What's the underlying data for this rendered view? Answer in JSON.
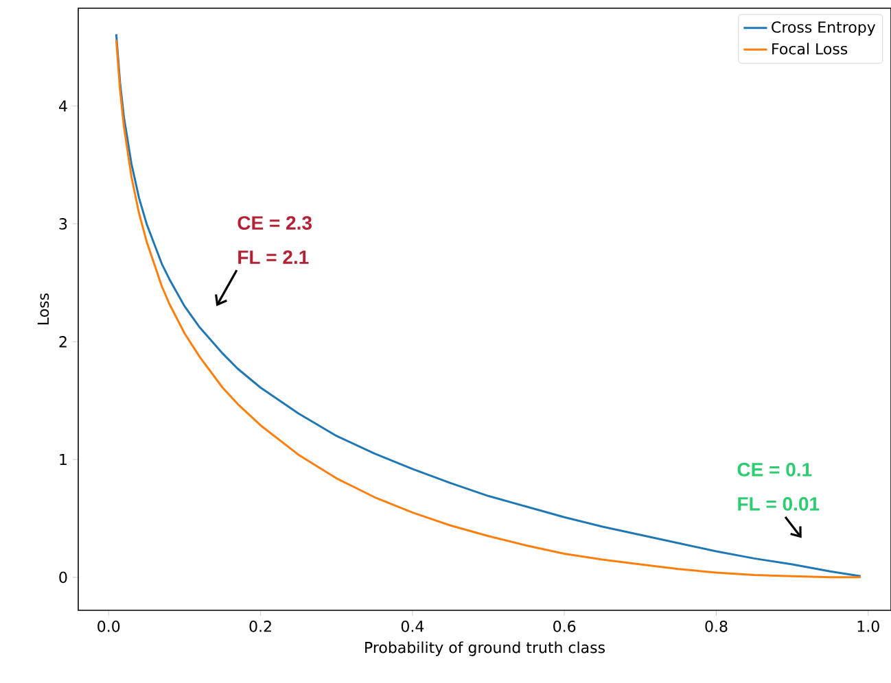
{
  "chart_data": {
    "type": "line",
    "xlabel": "Probability of ground truth class",
    "ylabel": "Loss",
    "x": [
      0.01,
      0.015,
      0.02,
      0.03,
      0.04,
      0.05,
      0.07,
      0.08,
      0.1,
      0.12,
      0.15,
      0.17,
      0.2,
      0.25,
      0.3,
      0.35,
      0.4,
      0.45,
      0.5,
      0.55,
      0.6,
      0.65,
      0.7,
      0.75,
      0.8,
      0.85,
      0.9,
      0.95,
      0.99
    ],
    "series": [
      {
        "name": "Cross Entropy",
        "color": "#1f77b4",
        "values": [
          4.61,
          4.2,
          3.91,
          3.51,
          3.22,
          3.0,
          2.66,
          2.53,
          2.3,
          2.12,
          1.9,
          1.77,
          1.61,
          1.39,
          1.2,
          1.05,
          0.92,
          0.8,
          0.69,
          0.6,
          0.51,
          0.43,
          0.36,
          0.29,
          0.22,
          0.16,
          0.11,
          0.05,
          0.01
        ]
      },
      {
        "name": "Focal Loss",
        "color": "#ff7f0e",
        "values": [
          4.56,
          4.14,
          3.83,
          3.4,
          3.09,
          2.85,
          2.47,
          2.32,
          2.07,
          1.87,
          1.61,
          1.47,
          1.29,
          1.04,
          0.84,
          0.68,
          0.55,
          0.44,
          0.35,
          0.27,
          0.2,
          0.15,
          0.11,
          0.07,
          0.04,
          0.02,
          0.01,
          0.0,
          0.0
        ]
      }
    ],
    "xlim": [
      -0.04,
      1.03
    ],
    "ylim": [
      -0.28,
      4.83
    ],
    "xticks": [
      {
        "value": 0,
        "label": "0.0"
      },
      0.2,
      0.4,
      0.6,
      0.8,
      {
        "value": 1,
        "label": "1.0"
      }
    ],
    "yticks": [
      0,
      1,
      2,
      3,
      4
    ],
    "legend": "top right",
    "grid": false,
    "annotations": [
      "CE = 2.3",
      "FL = 2.1",
      "CE = 0.1",
      "FL = 0.01"
    ]
  }
}
